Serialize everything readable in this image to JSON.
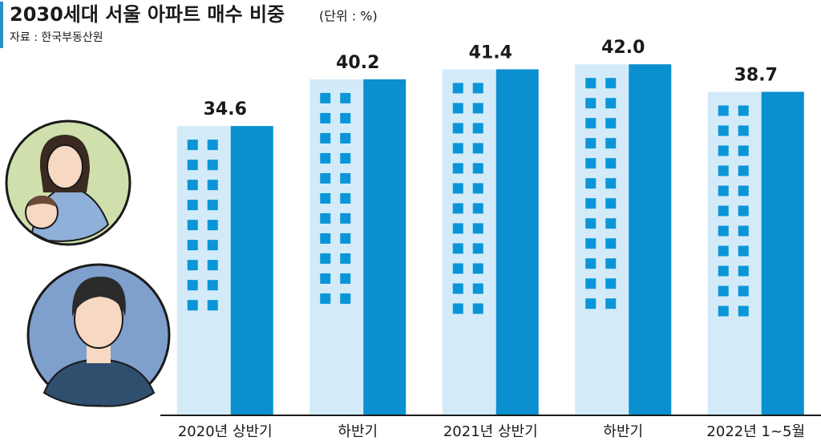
{
  "chart_data": {
    "type": "bar",
    "title": "2030세대 서울 아파트 매수 비중",
    "subtitle": "(단위 : %)",
    "source": "자료 : 한국부동산원",
    "categories": [
      "2020년 상반기",
      "하반기",
      "2021년 상반기",
      "하반기",
      "2022년 1~5월"
    ],
    "values": [
      34.6,
      40.2,
      41.4,
      42.0,
      38.7
    ],
    "value_labels": [
      "34.6",
      "40.2",
      "41.4",
      "42.0",
      "38.7"
    ],
    "color": "#0a8fcf"
  }
}
